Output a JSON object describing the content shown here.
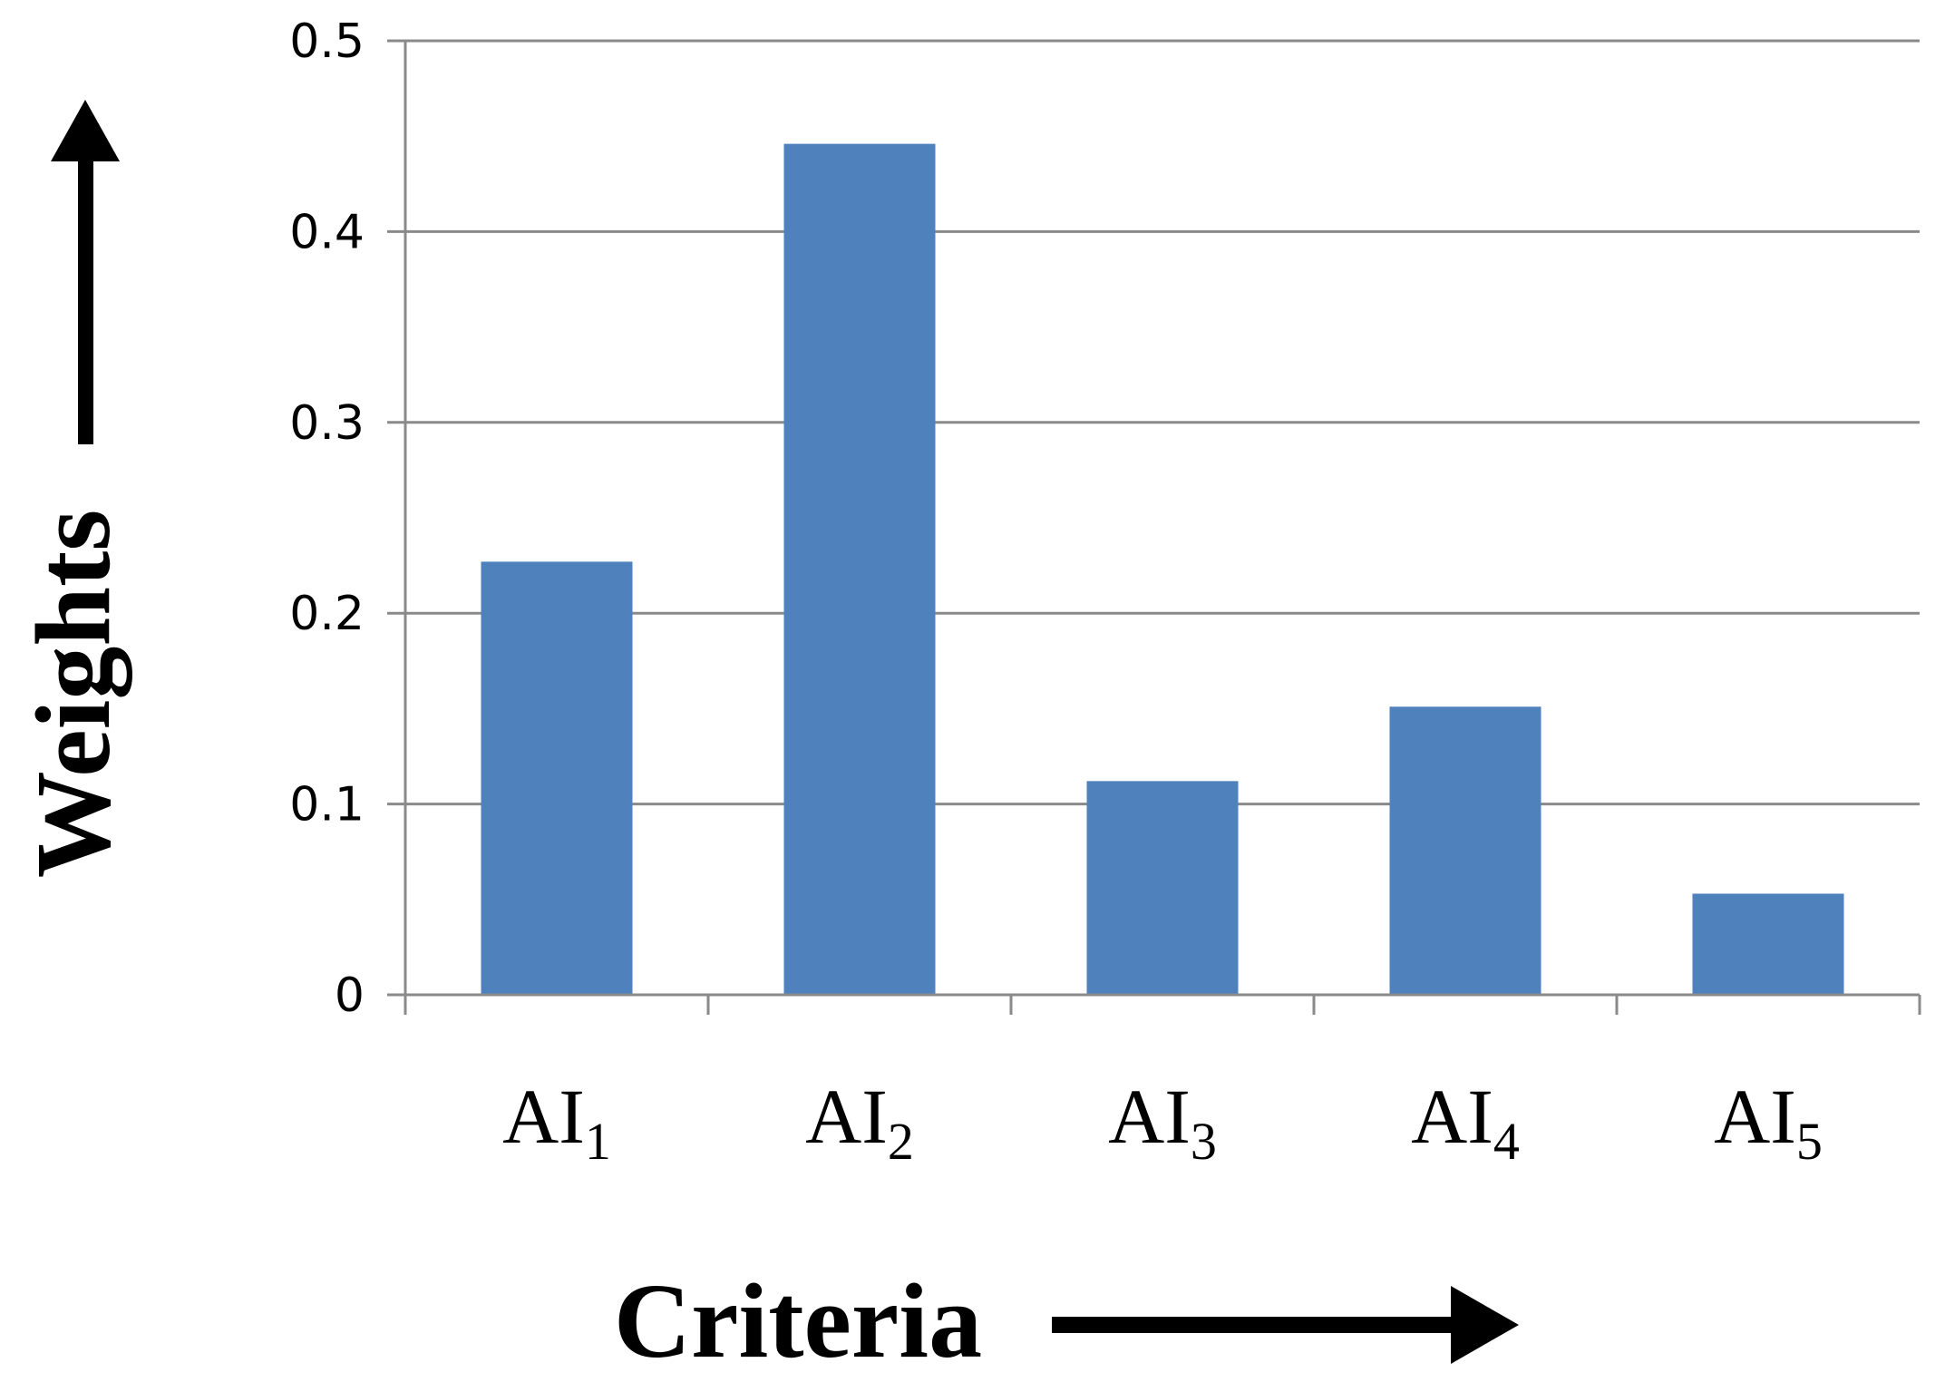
{
  "chart_data": {
    "type": "bar",
    "categories": [
      {
        "base": "AI",
        "sub": "1"
      },
      {
        "base": "AI",
        "sub": "2"
      },
      {
        "base": "AI",
        "sub": "3"
      },
      {
        "base": "AI",
        "sub": "4"
      },
      {
        "base": "AI",
        "sub": "5"
      }
    ],
    "values": [
      0.227,
      0.446,
      0.112,
      0.151,
      0.053
    ],
    "xlabel": "Criteria",
    "ylabel": "Weights",
    "ylim": [
      0,
      0.5
    ],
    "yticks": [
      0,
      0.1,
      0.2,
      0.3,
      0.4,
      0.5
    ],
    "ytick_labels": [
      "0",
      "0.1",
      "0.2",
      "0.3",
      "0.4",
      "0.5"
    ],
    "grid": true,
    "bar_color": "#4f81bd",
    "gridline_color": "#8a8a8a",
    "legend": "none"
  }
}
